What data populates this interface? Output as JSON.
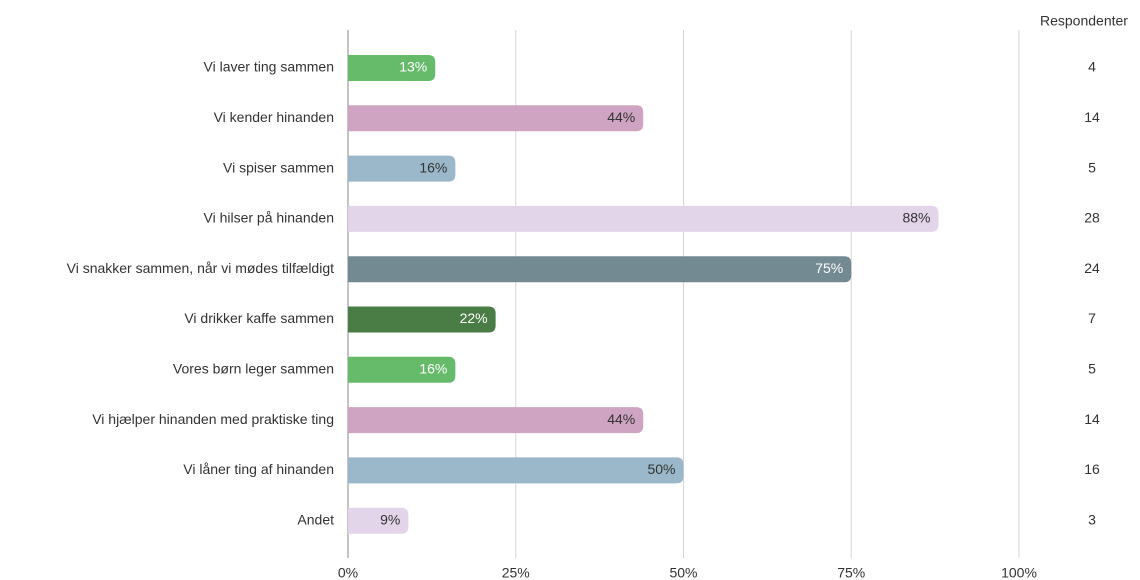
{
  "chart_data": {
    "type": "bar",
    "orientation": "horizontal",
    "categories": [
      "Vi laver ting sammen",
      "Vi kender hinanden",
      "Vi spiser sammen",
      "Vi hilser på hinanden",
      "Vi snakker sammen, når vi mødes tilfældigt",
      "Vi drikker kaffe sammen",
      "Vores børn leger sammen",
      "Vi hjælper hinanden med praktiske ting",
      "Vi låner ting af hinanden",
      "Andet"
    ],
    "values": [
      13,
      44,
      16,
      88,
      75,
      22,
      16,
      44,
      50,
      9
    ],
    "value_labels": [
      "13%",
      "44%",
      "16%",
      "88%",
      "75%",
      "22%",
      "16%",
      "44%",
      "50%",
      "9%"
    ],
    "colors": [
      "#66bb6a",
      "#cfa3c2",
      "#9ab8c9",
      "#e3d5e9",
      "#738a93",
      "#4a7c45",
      "#66bb6a",
      "#cfa3c2",
      "#9ab8c9",
      "#e3d5e9"
    ],
    "xlim": [
      0,
      100
    ],
    "xticks": [
      {
        "value": 0,
        "label": "0%"
      },
      {
        "value": 25,
        "label": "25%"
      },
      {
        "value": 50,
        "label": "50%"
      },
      {
        "value": 75,
        "label": "75%"
      },
      {
        "value": 100,
        "label": "100%"
      }
    ],
    "grid": true,
    "respondents": {
      "title": "Respondenter",
      "values": [
        4,
        14,
        5,
        28,
        24,
        7,
        5,
        14,
        16,
        3
      ]
    }
  }
}
